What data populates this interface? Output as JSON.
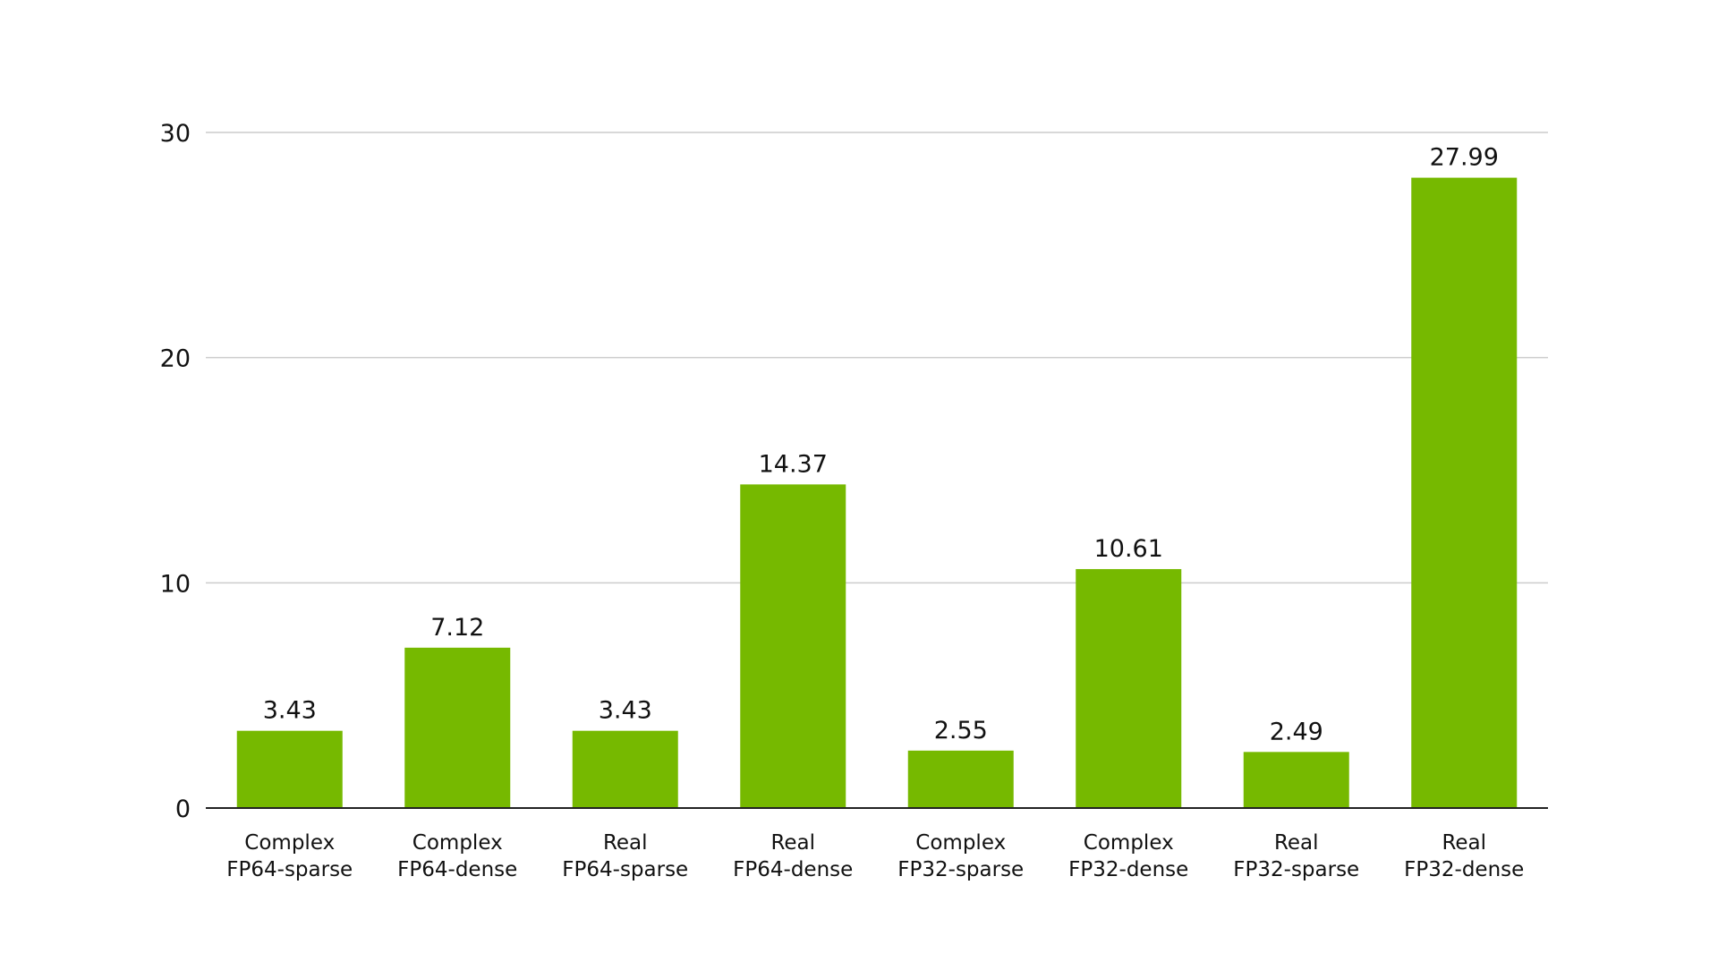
{
  "chart_data": {
    "type": "bar",
    "title": "",
    "xlabel": "",
    "ylabel": "",
    "ylim": [
      0,
      30
    ],
    "yticks": [
      0,
      10,
      20,
      30
    ],
    "grid": true,
    "categories": [
      [
        "Complex",
        "FP64-sparse"
      ],
      [
        "Complex",
        "FP64-dense"
      ],
      [
        "Real",
        "FP64-sparse"
      ],
      [
        "Real",
        "FP64-dense"
      ],
      [
        "Complex",
        "FP32-sparse"
      ],
      [
        "Complex",
        "FP32-dense"
      ],
      [
        "Real",
        "FP32-sparse"
      ],
      [
        "Real",
        "FP32-dense"
      ]
    ],
    "values": [
      3.43,
      7.12,
      3.43,
      14.37,
      2.55,
      10.61,
      2.49,
      27.99
    ],
    "data_labels": [
      "3.43",
      "7.12",
      "3.43",
      "14.37",
      "2.55",
      "10.61",
      "2.49",
      "27.99"
    ],
    "colors": {
      "bar": "#76b900",
      "grid": "#cccccc",
      "axis": "#222222",
      "text": "#111111"
    }
  }
}
